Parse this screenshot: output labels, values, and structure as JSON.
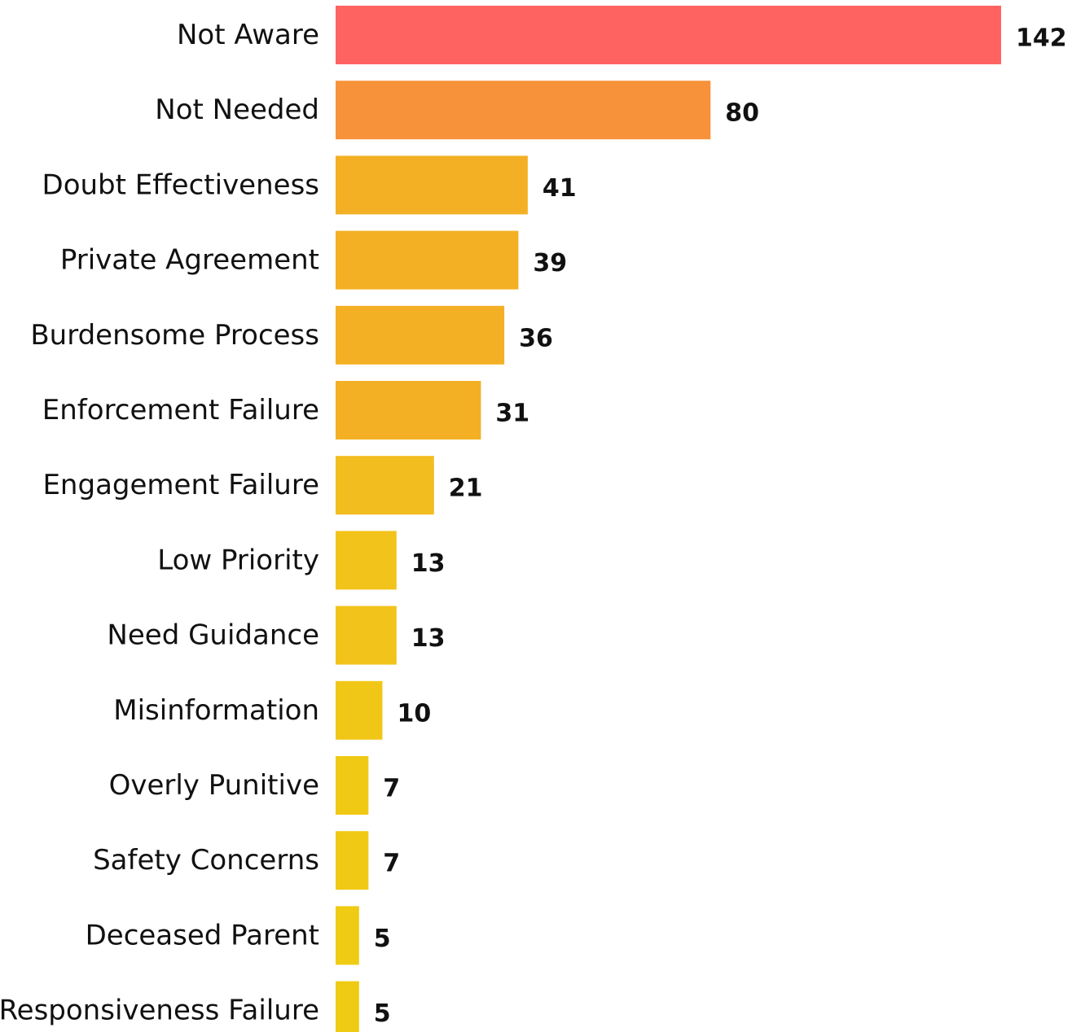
{
  "chart_data": {
    "type": "bar",
    "orientation": "horizontal",
    "categories": [
      "Not Aware",
      "Not Needed",
      "Doubt Effectiveness",
      "Private Agreement",
      "Burdensome Process",
      "Enforcement Failure",
      "Engagement Failure",
      "Low Priority",
      "Need Guidance",
      "Misinformation",
      "Overly Punitive",
      "Safety Concerns",
      "Deceased Parent",
      "Responsiveness Failure"
    ],
    "values": [
      142,
      80,
      41,
      39,
      36,
      31,
      21,
      13,
      13,
      10,
      7,
      7,
      5,
      5
    ],
    "colors": [
      "#FF6361",
      "#F7923A",
      "#F3B024",
      "#F3B024",
      "#F3B024",
      "#F3B024",
      "#F2BD1E",
      "#F2C31A",
      "#F2C31A",
      "#F1C717",
      "#F0C915",
      "#F0C915",
      "#F0CB14",
      "#F0CB14"
    ],
    "title": "",
    "xlabel": "",
    "ylabel": "",
    "xlim": [
      0,
      142
    ],
    "grid": false,
    "legend": "none",
    "data_labels": true
  }
}
